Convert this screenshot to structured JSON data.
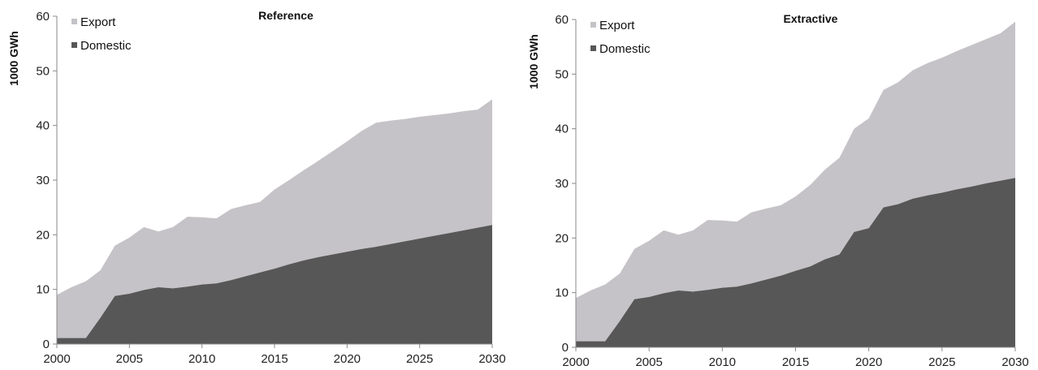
{
  "chart_data": [
    {
      "type": "area",
      "title": "Reference",
      "xlabel": "",
      "ylabel": "1000 GWh",
      "xlim": [
        2000,
        2030
      ],
      "ylim": [
        0,
        60
      ],
      "xticks": [
        "2000",
        "2005",
        "2010",
        "2015",
        "2020",
        "2025",
        "2030"
      ],
      "yticks": [
        "0",
        "10",
        "20",
        "30",
        "40",
        "50",
        "60"
      ],
      "stacked": true,
      "grid": false,
      "legend_position": "top-left",
      "x": [
        2000,
        2001,
        2002,
        2003,
        2004,
        2005,
        2006,
        2007,
        2008,
        2009,
        2010,
        2011,
        2012,
        2013,
        2014,
        2015,
        2016,
        2017,
        2018,
        2019,
        2020,
        2021,
        2022,
        2023,
        2024,
        2025,
        2026,
        2027,
        2028,
        2029,
        2030
      ],
      "series": [
        {
          "name": "Domestic",
          "color": "#575757",
          "values": [
            1.1,
            1.1,
            1.1,
            4.8,
            8.8,
            9.2,
            9.9,
            10.4,
            10.2,
            10.5,
            10.9,
            11.1,
            11.7,
            12.4,
            13.1,
            13.8,
            14.6,
            15.3,
            15.9,
            16.4,
            16.9,
            17.4,
            17.8,
            18.3,
            18.8,
            19.3,
            19.8,
            20.3,
            20.8,
            21.3,
            21.8
          ]
        },
        {
          "name": "Export",
          "color": "#c5c3c7",
          "values": [
            7.9,
            9.3,
            10.4,
            8.7,
            9.2,
            10.3,
            11.5,
            10.2,
            11.2,
            12.8,
            12.3,
            11.9,
            13.0,
            13.0,
            12.9,
            14.5,
            15.4,
            16.5,
            17.6,
            18.9,
            20.2,
            21.6,
            22.7,
            22.6,
            22.4,
            22.3,
            22.1,
            21.9,
            21.8,
            21.6,
            23.0
          ]
        }
      ]
    },
    {
      "type": "area",
      "title": "Extractive",
      "xlabel": "",
      "ylabel": "1000 GWh",
      "xlim": [
        2000,
        2030
      ],
      "ylim": [
        0,
        60
      ],
      "xticks": [
        "2000",
        "2005",
        "2010",
        "2015",
        "2020",
        "2025",
        "2030"
      ],
      "yticks": [
        "0",
        "10",
        "20",
        "30",
        "40",
        "50",
        "60"
      ],
      "stacked": true,
      "grid": false,
      "legend_position": "top-left",
      "x": [
        2000,
        2001,
        2002,
        2003,
        2004,
        2005,
        2006,
        2007,
        2008,
        2009,
        2010,
        2011,
        2012,
        2013,
        2014,
        2015,
        2016,
        2017,
        2018,
        2019,
        2020,
        2021,
        2022,
        2023,
        2024,
        2025,
        2026,
        2027,
        2028,
        2029,
        2030
      ],
      "series": [
        {
          "name": "Domestic",
          "color": "#575757",
          "values": [
            1.1,
            1.1,
            1.1,
            4.8,
            8.8,
            9.2,
            9.9,
            10.4,
            10.2,
            10.5,
            10.9,
            11.1,
            11.7,
            12.4,
            13.1,
            14.0,
            14.8,
            16.1,
            17.0,
            21.1,
            21.8,
            25.6,
            26.2,
            27.2,
            27.8,
            28.3,
            28.9,
            29.4,
            30.0,
            30.5,
            31.0
          ]
        },
        {
          "name": "Export",
          "color": "#c5c3c7",
          "values": [
            7.9,
            9.3,
            10.4,
            8.7,
            9.2,
            10.3,
            11.5,
            10.2,
            11.2,
            12.8,
            12.3,
            11.9,
            13.0,
            13.0,
            12.9,
            13.6,
            14.9,
            16.4,
            17.7,
            18.9,
            20.1,
            21.5,
            22.3,
            23.5,
            24.2,
            24.7,
            25.3,
            25.9,
            26.4,
            27.0,
            28.6
          ]
        }
      ]
    }
  ]
}
